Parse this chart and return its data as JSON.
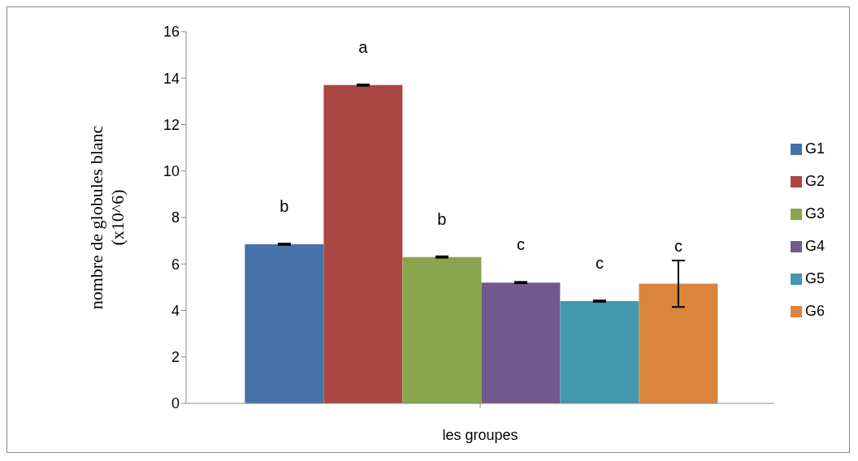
{
  "chart_data": {
    "type": "bar",
    "xlabel": "les groupes",
    "ylabel": "nombre de globules blanc (x10^6)",
    "categories": [
      null
    ],
    "series": [
      {
        "name": "G1",
        "color": "#4572a7",
        "values": [
          6.85
        ],
        "errors": [
          0.03
        ]
      },
      {
        "name": "G2",
        "color": "#aa4643",
        "values": [
          13.7
        ],
        "errors": [
          0.03
        ]
      },
      {
        "name": "G3",
        "color": "#89a54e",
        "values": [
          6.3
        ],
        "errors": [
          0.03
        ]
      },
      {
        "name": "G4",
        "color": "#71588f",
        "values": [
          5.2
        ],
        "errors": [
          0.03
        ]
      },
      {
        "name": "G5",
        "color": "#4198af",
        "values": [
          4.4
        ],
        "errors": [
          0.03
        ]
      },
      {
        "name": "G6",
        "color": "#db843d",
        "values": [
          5.15
        ],
        "errors": [
          1
        ]
      }
    ],
    "annotations": [
      "b",
      "a",
      "b",
      "c",
      "c",
      "c"
    ],
    "ylim": [
      0,
      16
    ],
    "yticks": [
      0,
      2,
      4,
      6,
      8,
      10,
      12,
      14,
      16
    ],
    "legend": "right"
  }
}
